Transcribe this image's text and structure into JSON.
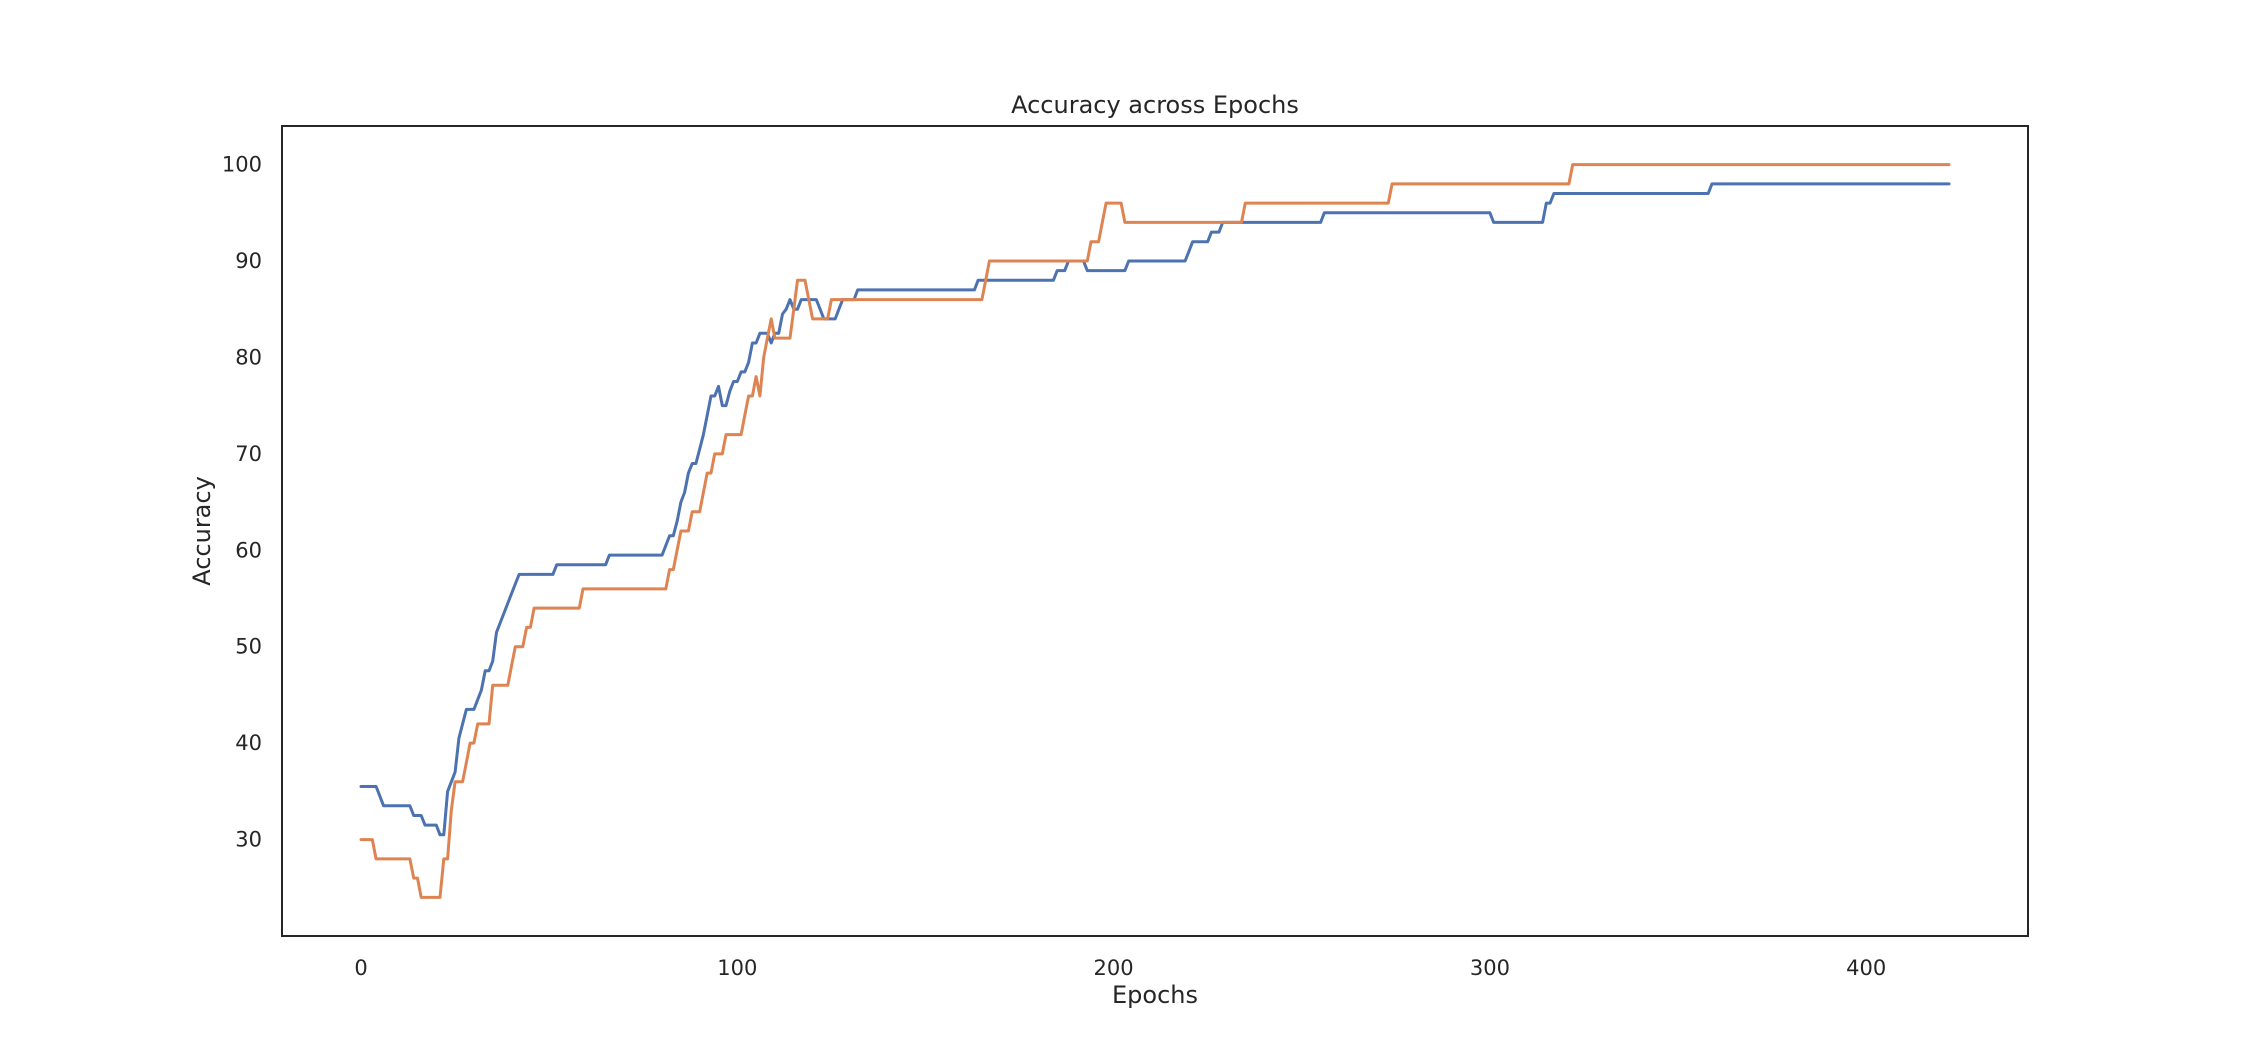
{
  "chart_data": {
    "type": "line",
    "title": "Accuracy across Epochs",
    "xlabel": "Epochs",
    "ylabel": "Accuracy",
    "xlim": [
      -21,
      443
    ],
    "ylim": [
      20,
      104
    ],
    "xticks": [
      0,
      100,
      200,
      300,
      400
    ],
    "yticks": [
      30,
      40,
      50,
      60,
      70,
      80,
      90,
      100
    ],
    "grid": false,
    "legend": "none",
    "series": [
      {
        "color": "#4c72b0",
        "points": [
          [
            0,
            35.5
          ],
          [
            4,
            35.5
          ],
          [
            6,
            33.5
          ],
          [
            13,
            33.5
          ],
          [
            14,
            32.5
          ],
          [
            16,
            32.5
          ],
          [
            17,
            31.5
          ],
          [
            20,
            31.5
          ],
          [
            21,
            30.5
          ],
          [
            22,
            30.5
          ],
          [
            23,
            35
          ],
          [
            25,
            37
          ],
          [
            26,
            40.5
          ],
          [
            27,
            42
          ],
          [
            28,
            43.5
          ],
          [
            30,
            43.5
          ],
          [
            32,
            45.5
          ],
          [
            33,
            47.5
          ],
          [
            34,
            47.5
          ],
          [
            35,
            48.5
          ],
          [
            36,
            51.5
          ],
          [
            38,
            53.5
          ],
          [
            40,
            55.5
          ],
          [
            41,
            56.5
          ],
          [
            42,
            57.5
          ],
          [
            51,
            57.5
          ],
          [
            52,
            58.5
          ],
          [
            65,
            58.5
          ],
          [
            66,
            59.5
          ],
          [
            80,
            59.5
          ],
          [
            81,
            60.5
          ],
          [
            82,
            61.5
          ],
          [
            83,
            61.5
          ],
          [
            84,
            63
          ],
          [
            85,
            65
          ],
          [
            86,
            66
          ],
          [
            87,
            68
          ],
          [
            88,
            69
          ],
          [
            89,
            69
          ],
          [
            90,
            70.5
          ],
          [
            91,
            72
          ],
          [
            92,
            74
          ],
          [
            93,
            76
          ],
          [
            94,
            76
          ],
          [
            95,
            77
          ],
          [
            96,
            75
          ],
          [
            97,
            75
          ],
          [
            98,
            76.5
          ],
          [
            99,
            77.5
          ],
          [
            100,
            77.5
          ],
          [
            101,
            78.5
          ],
          [
            102,
            78.5
          ],
          [
            103,
            79.5
          ],
          [
            104,
            81.5
          ],
          [
            105,
            81.5
          ],
          [
            106,
            82.5
          ],
          [
            107,
            82.5
          ],
          [
            108,
            82.5
          ],
          [
            109,
            81.5
          ],
          [
            110,
            82.5
          ],
          [
            111,
            82.5
          ],
          [
            112,
            84.5
          ],
          [
            113,
            85
          ],
          [
            114,
            86
          ],
          [
            115,
            85
          ],
          [
            116,
            85
          ],
          [
            117,
            86
          ],
          [
            121,
            86
          ],
          [
            122,
            85
          ],
          [
            123,
            84
          ],
          [
            126,
            84
          ],
          [
            127,
            85
          ],
          [
            128,
            86
          ],
          [
            131,
            86
          ],
          [
            132,
            87
          ],
          [
            163,
            87
          ],
          [
            164,
            88
          ],
          [
            184,
            88
          ],
          [
            185,
            89
          ],
          [
            187,
            89
          ],
          [
            188,
            90
          ],
          [
            192,
            90
          ],
          [
            193,
            89
          ],
          [
            203,
            89
          ],
          [
            204,
            90
          ],
          [
            219,
            90
          ],
          [
            220,
            91
          ],
          [
            221,
            92
          ],
          [
            225,
            92
          ],
          [
            226,
            93
          ],
          [
            228,
            93
          ],
          [
            229,
            94
          ],
          [
            255,
            94
          ],
          [
            256,
            95
          ],
          [
            300,
            95
          ],
          [
            301,
            94
          ],
          [
            314,
            94
          ],
          [
            315,
            96
          ],
          [
            316,
            96
          ],
          [
            317,
            97
          ],
          [
            358,
            97
          ],
          [
            359,
            98
          ],
          [
            422,
            98
          ]
        ]
      },
      {
        "color": "#dd8452",
        "points": [
          [
            0,
            30
          ],
          [
            3,
            30
          ],
          [
            4,
            28
          ],
          [
            13,
            28
          ],
          [
            14,
            26
          ],
          [
            15,
            26
          ],
          [
            16,
            24
          ],
          [
            21,
            24
          ],
          [
            22,
            28
          ],
          [
            23,
            28
          ],
          [
            24,
            33
          ],
          [
            25,
            36
          ],
          [
            27,
            36
          ],
          [
            28,
            38
          ],
          [
            29,
            40
          ],
          [
            30,
            40
          ],
          [
            31,
            42
          ],
          [
            34,
            42
          ],
          [
            35,
            46
          ],
          [
            39,
            46
          ],
          [
            40,
            48
          ],
          [
            41,
            50
          ],
          [
            43,
            50
          ],
          [
            44,
            52
          ],
          [
            45,
            52
          ],
          [
            46,
            54
          ],
          [
            58,
            54
          ],
          [
            59,
            56
          ],
          [
            81,
            56
          ],
          [
            82,
            58
          ],
          [
            83,
            58
          ],
          [
            84,
            60
          ],
          [
            85,
            62
          ],
          [
            87,
            62
          ],
          [
            88,
            64
          ],
          [
            90,
            64
          ],
          [
            91,
            66
          ],
          [
            92,
            68
          ],
          [
            93,
            68
          ],
          [
            94,
            70
          ],
          [
            96,
            70
          ],
          [
            97,
            72
          ],
          [
            101,
            72
          ],
          [
            102,
            74
          ],
          [
            103,
            76
          ],
          [
            104,
            76
          ],
          [
            105,
            78
          ],
          [
            106,
            76
          ],
          [
            107,
            80
          ],
          [
            108,
            82
          ],
          [
            109,
            84
          ],
          [
            110,
            82
          ],
          [
            114,
            82
          ],
          [
            115,
            85
          ],
          [
            116,
            88
          ],
          [
            118,
            88
          ],
          [
            119,
            86
          ],
          [
            120,
            84
          ],
          [
            124,
            84
          ],
          [
            125,
            86
          ],
          [
            165,
            86
          ],
          [
            166,
            88
          ],
          [
            167,
            90
          ],
          [
            193,
            90
          ],
          [
            194,
            92
          ],
          [
            196,
            92
          ],
          [
            197,
            94
          ],
          [
            198,
            96
          ],
          [
            202,
            96
          ],
          [
            203,
            94
          ],
          [
            234,
            94
          ],
          [
            235,
            96
          ],
          [
            273,
            96
          ],
          [
            274,
            98
          ],
          [
            321,
            98
          ],
          [
            322,
            100
          ],
          [
            422,
            100
          ]
        ]
      }
    ]
  }
}
